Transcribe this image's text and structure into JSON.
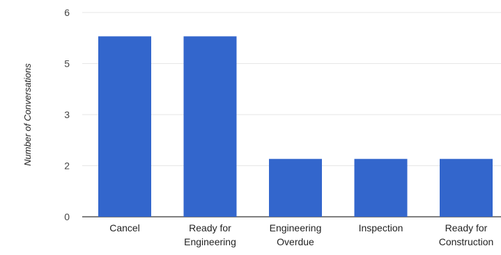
{
  "chart_data": {
    "type": "bar",
    "title": "",
    "xlabel": "",
    "ylabel": "Number of Conversations",
    "categories": [
      [
        "Cancel"
      ],
      [
        "Ready for",
        "Engineering"
      ],
      [
        "Engineering",
        "Overdue"
      ],
      [
        "Inspection"
      ],
      [
        "Ready for",
        "Construction"
      ]
    ],
    "values": [
      5.3,
      5.3,
      1.7,
      1.7,
      1.7
    ],
    "y_ticks": [
      {
        "label": "0",
        "value": 0
      },
      {
        "label": "2",
        "value": 1.5
      },
      {
        "label": "3",
        "value": 3
      },
      {
        "label": "5",
        "value": 4.5
      },
      {
        "label": "6",
        "value": 6
      }
    ],
    "ylim": [
      0,
      6
    ],
    "grid": true,
    "legend": "none",
    "colors": {
      "bar": "#3366cc",
      "grid": "#e6e6e6",
      "baseline": "#333333"
    }
  }
}
